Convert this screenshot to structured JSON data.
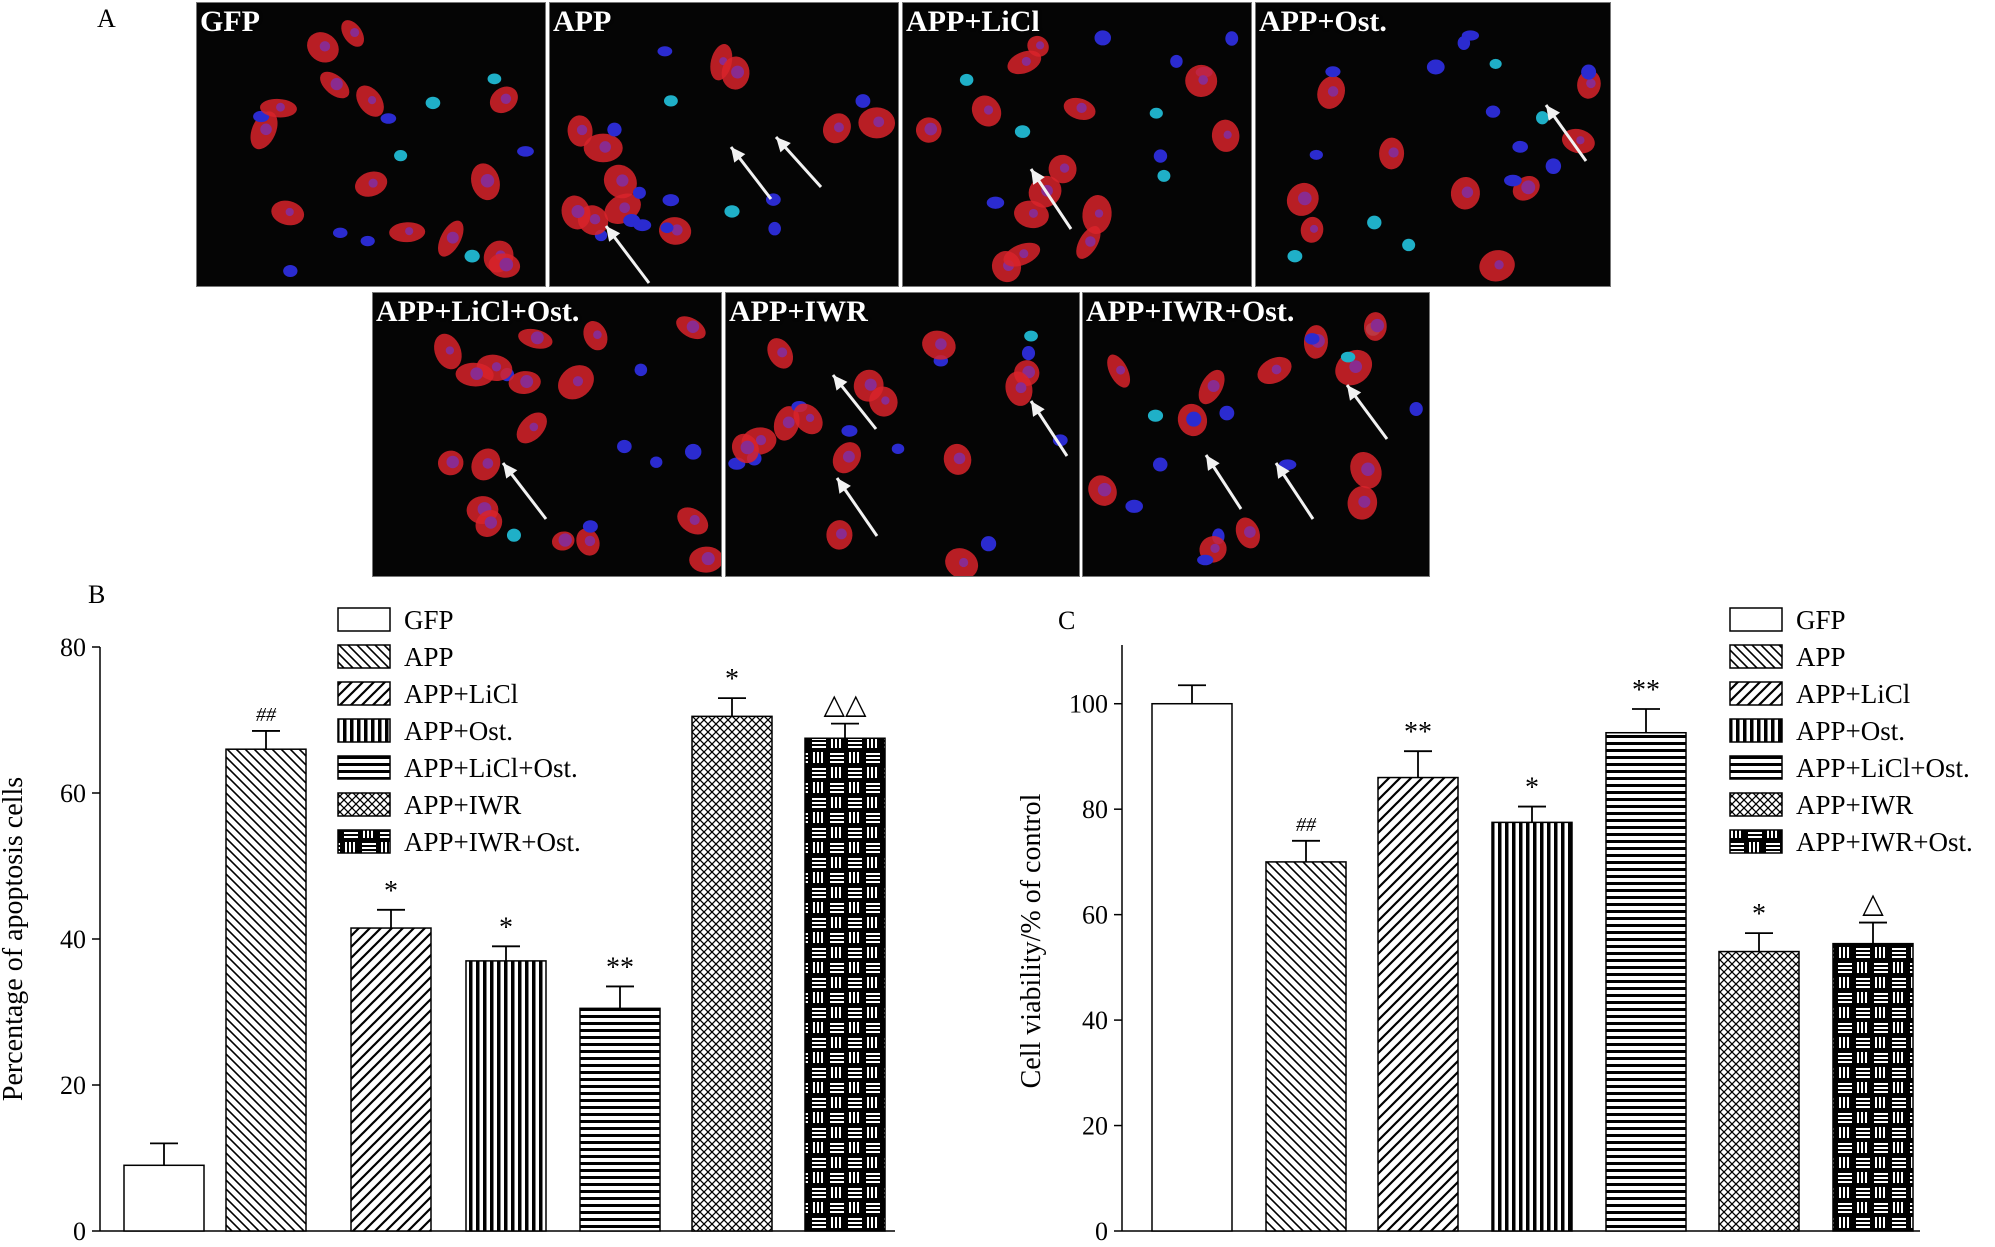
{
  "panel_letters": {
    "a": "A",
    "b": "B",
    "c": "C"
  },
  "micrographs": [
    {
      "label": "GFP"
    },
    {
      "label": "APP"
    },
    {
      "label": "APP+LiCl"
    },
    {
      "label": "APP+Ost."
    },
    {
      "label": "APP+LiCl+Ost."
    },
    {
      "label": "APP+IWR"
    },
    {
      "label": "APP+IWR+Ost."
    }
  ],
  "colors": {
    "cell_red": "#d8232a",
    "nucleus_blue": "#2b2bd0",
    "nucleus_cyan": "#1fb0c8",
    "arrow": "#f2f2f2",
    "ink": "#000000"
  },
  "chart_data": [
    {
      "type": "bar",
      "panel": "B",
      "ylabel": "Percentage of apoptosis cells",
      "ylim": [
        0,
        80
      ],
      "yticks": [
        "0",
        "20",
        "40",
        "60",
        "80"
      ],
      "categories": [
        "GFP",
        "APP",
        "APP+LiCl",
        "APP+Ost.",
        "APP+LiCl+Ost.",
        "APP+IWR",
        "APP+IWR+Ost."
      ],
      "values": [
        9,
        66,
        41.5,
        37,
        30.5,
        70.5,
        67.5
      ],
      "errors": [
        3,
        2.5,
        2.5,
        2,
        3,
        2.5,
        2
      ],
      "annotations": [
        "",
        "##",
        "*",
        "*",
        "**",
        "*",
        "△△"
      ],
      "legend": [
        "GFP",
        "APP",
        "APP+LiCl",
        "APP+Ost.",
        "APP+LiCl+Ost.",
        "APP+IWR",
        "APP+IWR+Ost."
      ],
      "legend_position": "top-right",
      "grid": false
    },
    {
      "type": "bar",
      "panel": "C",
      "ylabel": "Cell viability/% of control",
      "ylim": [
        0,
        110
      ],
      "yticks": [
        "0",
        "20",
        "40",
        "60",
        "80",
        "100"
      ],
      "categories": [
        "GFP",
        "APP",
        "APP+LiCl",
        "APP+Ost.",
        "APP+LiCl+Ost.",
        "APP+IWR",
        "APP+IWR+Ost."
      ],
      "values": [
        100,
        70,
        86,
        77.5,
        94.5,
        53,
        54.5
      ],
      "errors": [
        3.5,
        4,
        5,
        3,
        4.5,
        3.5,
        4
      ],
      "annotations": [
        "",
        "##",
        "**",
        "*",
        "**",
        "*",
        "△"
      ],
      "legend": [
        "GFP",
        "APP",
        "APP+LiCl",
        "APP+Ost.",
        "APP+LiCl+Ost.",
        "APP+IWR",
        "APP+IWR+Ost."
      ],
      "legend_position": "top-right",
      "grid": false
    }
  ]
}
